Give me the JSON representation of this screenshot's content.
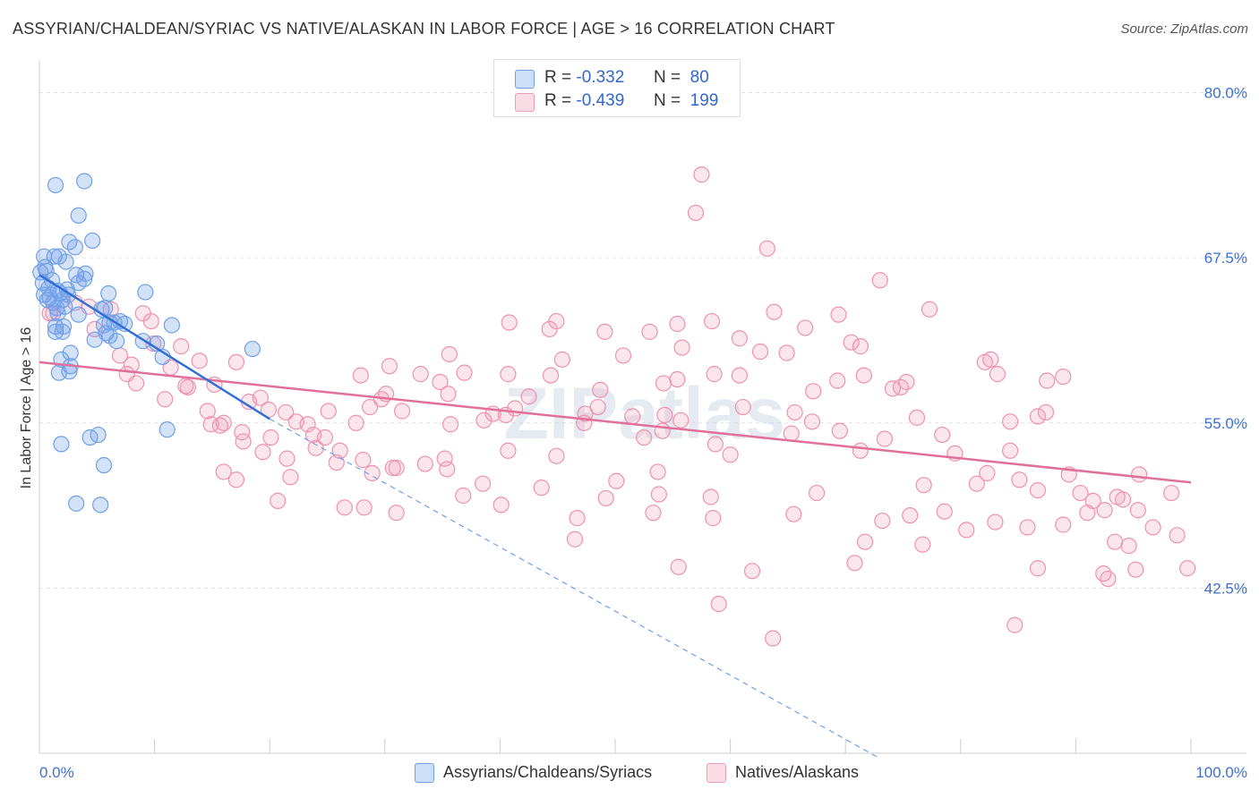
{
  "title": "ASSYRIAN/CHALDEAN/SYRIAC VS NATIVE/ALASKAN IN LABOR FORCE | AGE > 16 CORRELATION CHART",
  "source": "Source: ZipAtlas.com",
  "watermark": "ZIPatlas",
  "legend": {
    "rows": [
      {
        "r_label": "R =",
        "r_value": "-0.332",
        "n_label": "N =",
        "n_value": "80",
        "color": "#6fa0e8"
      },
      {
        "r_label": "R =",
        "r_value": "-0.439",
        "n_label": "N =",
        "n_value": "199",
        "color": "#f09ab5"
      }
    ]
  },
  "bottom_legend": [
    {
      "label": "Assyrians/Chaldeans/Syriacs",
      "color": "#6fa0e8"
    },
    {
      "label": "Natives/Alaskans",
      "color": "#f09ab5"
    }
  ],
  "chart_data": {
    "type": "scatter",
    "ylabel": "In Labor Force | Age > 16",
    "xlim": [
      0,
      100
    ],
    "ylim": [
      30,
      82
    ],
    "x_tick_labels": [
      "0.0%",
      "100.0%"
    ],
    "y_ticks": [
      42.5,
      55.0,
      67.5,
      80.0
    ],
    "y_tick_labels": [
      "42.5%",
      "55.0%",
      "67.5%",
      "80.0%"
    ],
    "grid": true,
    "series": [
      {
        "name": "Assyrians/Chaldeans/Syriacs",
        "color": "#6fa0e8",
        "trend": {
          "x0": 0,
          "y0": 66.2,
          "x1": 20,
          "y1": 55.3,
          "dash_to_x": 73,
          "dash_to_y": 29.6
        },
        "points": [
          [
            1.4,
            73.0
          ],
          [
            3.9,
            73.3
          ],
          [
            3.4,
            70.7
          ],
          [
            2.6,
            68.7
          ],
          [
            3.1,
            68.3
          ],
          [
            4.6,
            68.8
          ],
          [
            0.4,
            67.6
          ],
          [
            1.3,
            67.6
          ],
          [
            1.7,
            67.6
          ],
          [
            2.3,
            67.2
          ],
          [
            0.5,
            66.8
          ],
          [
            0.1,
            66.4
          ],
          [
            0.6,
            66.5
          ],
          [
            3.2,
            66.2
          ],
          [
            4.0,
            66.3
          ],
          [
            1.1,
            65.8
          ],
          [
            2.4,
            65.1
          ],
          [
            3.4,
            65.6
          ],
          [
            3.9,
            65.9
          ],
          [
            0.3,
            65.6
          ],
          [
            0.8,
            65.2
          ],
          [
            1.6,
            65.0
          ],
          [
            0.4,
            64.7
          ],
          [
            0.9,
            64.5
          ],
          [
            1.8,
            64.8
          ],
          [
            2.5,
            64.7
          ],
          [
            6.0,
            64.8
          ],
          [
            9.2,
            64.9
          ],
          [
            0.7,
            64.3
          ],
          [
            1.2,
            64.1
          ],
          [
            2.0,
            64.3
          ],
          [
            1.5,
            63.7
          ],
          [
            2.2,
            63.8
          ],
          [
            5.4,
            63.6
          ],
          [
            3.4,
            63.2
          ],
          [
            5.7,
            63.7
          ],
          [
            1.6,
            63.3
          ],
          [
            6.1,
            62.6
          ],
          [
            7.0,
            62.7
          ],
          [
            1.4,
            62.3
          ],
          [
            2.1,
            62.3
          ],
          [
            5.6,
            62.4
          ],
          [
            6.5,
            62.6
          ],
          [
            11.5,
            62.4
          ],
          [
            1.4,
            61.9
          ],
          [
            2.0,
            61.9
          ],
          [
            5.8,
            61.8
          ],
          [
            7.4,
            62.5
          ],
          [
            6.1,
            61.6
          ],
          [
            4.8,
            61.3
          ],
          [
            6.7,
            61.2
          ],
          [
            9.0,
            61.2
          ],
          [
            10.2,
            61.0
          ],
          [
            18.5,
            60.6
          ],
          [
            2.7,
            60.3
          ],
          [
            1.9,
            59.8
          ],
          [
            2.7,
            59.3
          ],
          [
            10.7,
            60.0
          ],
          [
            1.7,
            58.8
          ],
          [
            2.6,
            58.9
          ],
          [
            11.1,
            54.5
          ],
          [
            5.1,
            54.1
          ],
          [
            4.4,
            53.9
          ],
          [
            1.9,
            53.4
          ],
          [
            5.6,
            51.8
          ],
          [
            3.2,
            48.9
          ],
          [
            5.3,
            48.8
          ]
        ]
      },
      {
        "name": "Natives/Alaskans",
        "color": "#f09ab5",
        "trend": {
          "x0": 0,
          "y0": 59.6,
          "x1": 100,
          "y1": 50.5
        },
        "points": [
          [
            57.5,
            73.8
          ],
          [
            57.0,
            70.9
          ],
          [
            63.2,
            68.2
          ],
          [
            73.0,
            65.8
          ],
          [
            77.3,
            63.6
          ],
          [
            69.4,
            63.2
          ],
          [
            55.4,
            62.5
          ],
          [
            63.8,
            63.4
          ],
          [
            66.5,
            62.2
          ],
          [
            44.9,
            62.7
          ],
          [
            44.3,
            62.1
          ],
          [
            53.0,
            61.9
          ],
          [
            40.8,
            62.6
          ],
          [
            49.1,
            61.9
          ],
          [
            58.4,
            62.7
          ],
          [
            55.8,
            60.7
          ],
          [
            60.8,
            61.4
          ],
          [
            62.6,
            60.4
          ],
          [
            64.9,
            60.3
          ],
          [
            70.5,
            61.1
          ],
          [
            71.3,
            60.8
          ],
          [
            82.1,
            59.6
          ],
          [
            82.6,
            59.8
          ],
          [
            50.7,
            60.1
          ],
          [
            45.4,
            59.8
          ],
          [
            35.6,
            60.2
          ],
          [
            30.4,
            59.3
          ],
          [
            33.1,
            58.7
          ],
          [
            36.9,
            58.8
          ],
          [
            40.7,
            58.7
          ],
          [
            44.4,
            58.6
          ],
          [
            55.4,
            58.3
          ],
          [
            58.6,
            58.7
          ],
          [
            60.8,
            58.6
          ],
          [
            69.3,
            58.2
          ],
          [
            71.6,
            58.6
          ],
          [
            74.8,
            57.7
          ],
          [
            75.3,
            58.1
          ],
          [
            83.2,
            58.7
          ],
          [
            87.5,
            58.2
          ],
          [
            88.9,
            58.5
          ],
          [
            74.1,
            57.6
          ],
          [
            67.2,
            57.4
          ],
          [
            54.2,
            58.0
          ],
          [
            48.7,
            57.5
          ],
          [
            34.8,
            58.1
          ],
          [
            27.9,
            58.6
          ],
          [
            29.7,
            56.8
          ],
          [
            25.1,
            55.9
          ],
          [
            31.5,
            55.9
          ],
          [
            35.5,
            57.2
          ],
          [
            39.4,
            55.7
          ],
          [
            38.6,
            55.2
          ],
          [
            41.3,
            56.1
          ],
          [
            47.4,
            55.7
          ],
          [
            48.5,
            56.2
          ],
          [
            51.5,
            55.5
          ],
          [
            54.3,
            55.6
          ],
          [
            55.7,
            55.2
          ],
          [
            61.1,
            56.2
          ],
          [
            65.6,
            55.8
          ],
          [
            67.1,
            55.1
          ],
          [
            76.2,
            55.4
          ],
          [
            84.3,
            55.1
          ],
          [
            86.7,
            55.5
          ],
          [
            87.4,
            55.8
          ],
          [
            14.6,
            55.9
          ],
          [
            15.7,
            54.8
          ],
          [
            16.0,
            55.0
          ],
          [
            19.2,
            56.9
          ],
          [
            21.4,
            55.8
          ],
          [
            23.3,
            54.9
          ],
          [
            23.8,
            54.1
          ],
          [
            27.5,
            55.0
          ],
          [
            28.7,
            56.2
          ],
          [
            30.1,
            57.2
          ],
          [
            35.7,
            54.9
          ],
          [
            40.5,
            55.6
          ],
          [
            42.5,
            57.0
          ],
          [
            47.3,
            55.0
          ],
          [
            54.1,
            54.4
          ],
          [
            52.5,
            53.9
          ],
          [
            58.7,
            53.4
          ],
          [
            65.3,
            54.2
          ],
          [
            69.5,
            54.4
          ],
          [
            71.3,
            52.9
          ],
          [
            78.4,
            54.1
          ],
          [
            73.4,
            53.8
          ],
          [
            79.5,
            52.7
          ],
          [
            82.3,
            51.2
          ],
          [
            84.3,
            52.9
          ],
          [
            85.1,
            50.7
          ],
          [
            89.4,
            51.1
          ],
          [
            95.5,
            51.1
          ],
          [
            17.7,
            53.6
          ],
          [
            19.4,
            52.8
          ],
          [
            21.5,
            52.3
          ],
          [
            24.0,
            53.1
          ],
          [
            26.1,
            52.9
          ],
          [
            28.1,
            52.2
          ],
          [
            31.0,
            51.6
          ],
          [
            33.5,
            51.9
          ],
          [
            35.2,
            52.3
          ],
          [
            40.7,
            52.9
          ],
          [
            44.9,
            52.5
          ],
          [
            50.1,
            50.6
          ],
          [
            53.7,
            51.3
          ],
          [
            60.0,
            52.6
          ],
          [
            16.0,
            51.3
          ],
          [
            17.1,
            50.7
          ],
          [
            21.8,
            50.9
          ],
          [
            25.8,
            52.0
          ],
          [
            28.9,
            51.2
          ],
          [
            30.7,
            51.6
          ],
          [
            35.4,
            51.5
          ],
          [
            38.5,
            50.4
          ],
          [
            43.6,
            50.1
          ],
          [
            36.8,
            49.5
          ],
          [
            49.2,
            49.3
          ],
          [
            53.8,
            49.6
          ],
          [
            58.3,
            49.4
          ],
          [
            67.5,
            49.7
          ],
          [
            76.8,
            50.3
          ],
          [
            81.4,
            50.4
          ],
          [
            86.7,
            49.9
          ],
          [
            90.4,
            49.7
          ],
          [
            91.5,
            49.1
          ],
          [
            92.5,
            48.4
          ],
          [
            94.1,
            49.2
          ],
          [
            98.3,
            49.7
          ],
          [
            20.7,
            49.1
          ],
          [
            26.5,
            48.6
          ],
          [
            28.2,
            48.6
          ],
          [
            31.0,
            48.2
          ],
          [
            40.1,
            48.8
          ],
          [
            46.7,
            47.8
          ],
          [
            53.3,
            48.2
          ],
          [
            58.5,
            47.8
          ],
          [
            65.5,
            48.1
          ],
          [
            73.2,
            47.6
          ],
          [
            75.6,
            48.0
          ],
          [
            78.6,
            48.3
          ],
          [
            80.5,
            46.9
          ],
          [
            83.0,
            47.5
          ],
          [
            88.9,
            47.3
          ],
          [
            91.0,
            48.2
          ],
          [
            93.6,
            49.4
          ],
          [
            95.4,
            48.4
          ],
          [
            46.5,
            46.2
          ],
          [
            71.7,
            46.0
          ],
          [
            76.7,
            45.8
          ],
          [
            85.8,
            47.1
          ],
          [
            93.4,
            46.0
          ],
          [
            94.6,
            45.7
          ],
          [
            96.7,
            47.1
          ],
          [
            98.8,
            46.5
          ],
          [
            55.5,
            44.1
          ],
          [
            61.9,
            43.8
          ],
          [
            70.8,
            44.4
          ],
          [
            86.7,
            44.0
          ],
          [
            92.4,
            43.6
          ],
          [
            95.2,
            43.9
          ],
          [
            99.7,
            44.0
          ],
          [
            59.0,
            41.3
          ],
          [
            92.8,
            43.2
          ],
          [
            63.7,
            38.7
          ],
          [
            84.7,
            39.7
          ],
          [
            9.0,
            63.3
          ],
          [
            4.3,
            63.8
          ],
          [
            6.2,
            63.6
          ],
          [
            9.7,
            62.7
          ],
          [
            4.8,
            62.1
          ],
          [
            12.3,
            60.8
          ],
          [
            9.9,
            61.0
          ],
          [
            7.0,
            60.1
          ],
          [
            8.0,
            59.4
          ],
          [
            11.4,
            59.2
          ],
          [
            13.9,
            59.7
          ],
          [
            17.1,
            59.6
          ],
          [
            12.9,
            57.7
          ],
          [
            7.6,
            58.7
          ],
          [
            8.4,
            58.0
          ],
          [
            14.9,
            54.9
          ],
          [
            17.6,
            54.3
          ],
          [
            19.9,
            56.0
          ],
          [
            20.1,
            53.9
          ],
          [
            15.2,
            57.9
          ],
          [
            24.8,
            53.9
          ],
          [
            10.9,
            56.8
          ],
          [
            18.2,
            56.6
          ],
          [
            3.1,
            64.1
          ],
          [
            1.2,
            63.3
          ],
          [
            22.3,
            55.1
          ],
          [
            12.7,
            57.8
          ],
          [
            0.9,
            63.3
          ]
        ]
      }
    ]
  }
}
